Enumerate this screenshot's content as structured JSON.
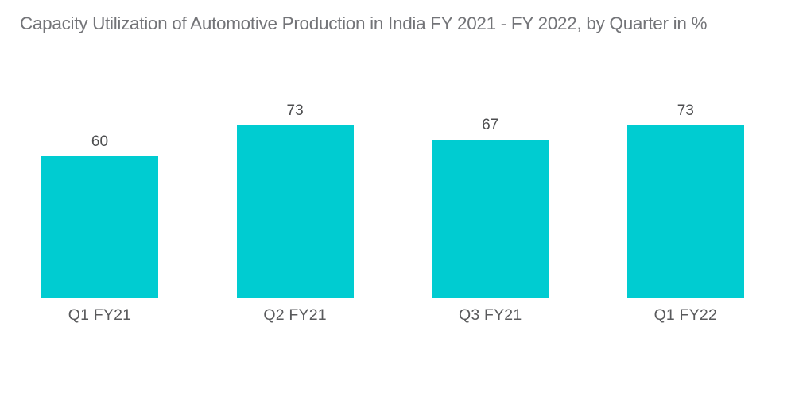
{
  "page": {
    "background": "#FFFFFF"
  },
  "chart_data": {
    "type": "bar",
    "title": "Capacity Utilization of Automotive Production in India FY 2021 - FY 2022, by Quarter in %",
    "categories": [
      "Q1 FY21",
      "Q2 FY21",
      "Q3 FY21",
      "Q1 FY22"
    ],
    "values": [
      60,
      73,
      67,
      73
    ],
    "xlabel": "",
    "ylabel": "",
    "ylim": [
      0,
      80
    ],
    "grid": false,
    "legend": false,
    "axes_visible": false,
    "value_label_position": "above-bar",
    "colors": {
      "bar": "#00CCD1",
      "title_text": "#737478",
      "value_label_text": "#4C4D4F",
      "category_label_text": "#595A5C",
      "background": "#FFFFFF"
    }
  }
}
